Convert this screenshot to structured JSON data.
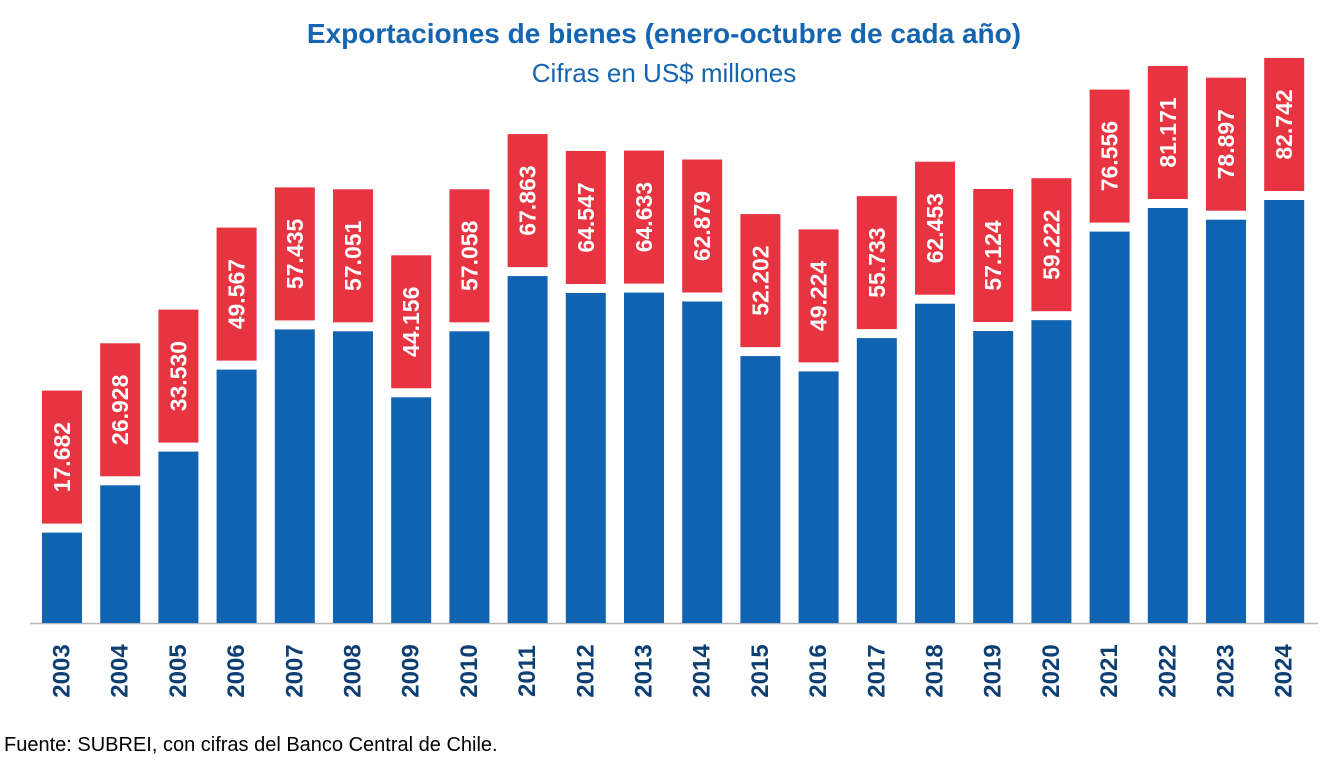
{
  "title": "Exportaciones de bienes (enero-octubre de cada año)",
  "subtitle": "Cifras en US$ millones",
  "source": "Fuente: SUBREI, con cifras del Banco Central de Chile.",
  "colors": {
    "bar": "#0f63b0",
    "label_box": "#e73440",
    "label_text": "#ffffff",
    "axis_text": "#0d3f73",
    "title": "#1565b0"
  },
  "chart_data": {
    "type": "bar",
    "title": "Exportaciones de bienes (enero-octubre de cada año)",
    "subtitle": "Cifras en US$ millones",
    "xlabel": "",
    "ylabel": "",
    "ylim": [
      0,
      100000
    ],
    "grid": false,
    "legend": "none",
    "categories": [
      "2003",
      "2004",
      "2005",
      "2006",
      "2007",
      "2008",
      "2009",
      "2010",
      "2011",
      "2012",
      "2013",
      "2014",
      "2015",
      "2016",
      "2017",
      "2018",
      "2019",
      "2020",
      "2021",
      "2022",
      "2023",
      "2024"
    ],
    "values": [
      17682,
      26928,
      33530,
      49567,
      57435,
      57051,
      44156,
      57058,
      67863,
      64547,
      64633,
      62879,
      52202,
      49224,
      55733,
      62453,
      57124,
      59222,
      76556,
      81171,
      78897,
      82742
    ],
    "data_labels": [
      "17.682",
      "26.928",
      "33.530",
      "49.567",
      "57.435",
      "57.051",
      "44.156",
      "57.058",
      "67.863",
      "64.547",
      "64.633",
      "62.879",
      "52.202",
      "49.224",
      "55.733",
      "62.453",
      "57.124",
      "59.222",
      "76.556",
      "81.171",
      "78.897",
      "82.742"
    ]
  }
}
